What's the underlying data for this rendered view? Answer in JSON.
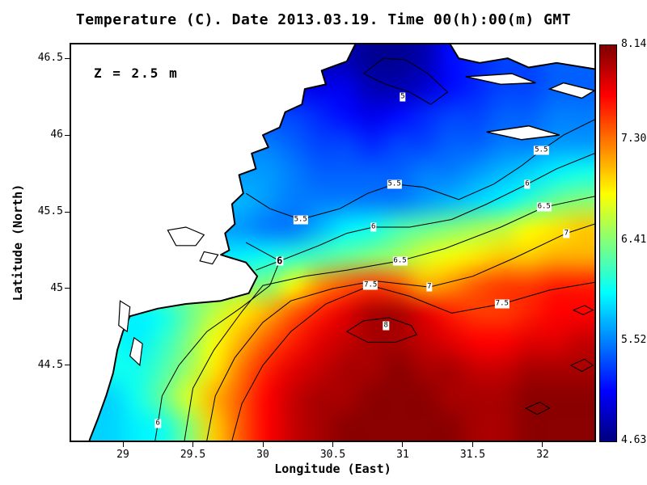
{
  "title": "Temperature (C). Date 2013.03.19. Time 00(h):00(m) GMT",
  "annotation": "Z = 2.5 m",
  "chart_data": {
    "type": "heatmap",
    "title": "Temperature (C). Date 2013.03.19. Time 00(h):00(m) GMT",
    "xlabel": "Longitude (East)",
    "ylabel": "Latitude (North)",
    "lon_range": [
      28.63,
      32.37
    ],
    "lat_range": [
      44.01,
      46.59
    ],
    "x_ticks": [
      {
        "value": 29,
        "label": "29"
      },
      {
        "value": 29.5,
        "label": "29.5"
      },
      {
        "value": 30,
        "label": "30"
      },
      {
        "value": 30.5,
        "label": "30.5"
      },
      {
        "value": 31,
        "label": "31"
      },
      {
        "value": 31.5,
        "label": "31.5"
      },
      {
        "value": 32,
        "label": "32"
      }
    ],
    "y_ticks": [
      {
        "value": 44.5,
        "label": "44.5"
      },
      {
        "value": 45,
        "label": "45"
      },
      {
        "value": 45.5,
        "label": "45.5"
      },
      {
        "value": 46,
        "label": "46"
      },
      {
        "value": 46.5,
        "label": "46.5"
      }
    ],
    "temp_min": 4.63,
    "temp_max": 8.14,
    "colormap": "jet",
    "colorbar_labels": [
      {
        "value": 8.14,
        "label": "8.14"
      },
      {
        "value": 7.3,
        "label": "7.30"
      },
      {
        "value": 6.41,
        "label": "6.41"
      },
      {
        "value": 5.52,
        "label": "5.52"
      },
      {
        "value": 4.63,
        "label": "4.63"
      }
    ],
    "grid": {
      "cols": 20,
      "rows": 14,
      "note": "temperature C on regular lon/lat grid, north row first, null = land",
      "values": [
        [
          null,
          null,
          null,
          null,
          null,
          null,
          null,
          null,
          null,
          null,
          4.8,
          4.7,
          4.7,
          4.8,
          5.1,
          5.2,
          5.3,
          5.3,
          5.4,
          5.4
        ],
        [
          null,
          null,
          null,
          null,
          null,
          null,
          null,
          null,
          null,
          null,
          5.0,
          4.8,
          4.8,
          4.9,
          5.1,
          5.2,
          5.3,
          5.3,
          5.4,
          5.4
        ],
        [
          null,
          null,
          null,
          null,
          null,
          null,
          null,
          null,
          5.3,
          5.2,
          5.1,
          5.0,
          5.1,
          5.2,
          5.3,
          5.3,
          5.4,
          5.4,
          5.5,
          5.5
        ],
        [
          null,
          null,
          null,
          null,
          null,
          null,
          null,
          5.5,
          5.4,
          5.3,
          5.3,
          5.2,
          5.3,
          5.3,
          5.4,
          5.4,
          5.5,
          5.5,
          5.6,
          5.6
        ],
        [
          null,
          null,
          null,
          null,
          null,
          null,
          null,
          5.6,
          5.5,
          5.4,
          5.4,
          5.4,
          5.4,
          5.5,
          5.5,
          5.6,
          5.7,
          5.8,
          5.9,
          6.0
        ],
        [
          null,
          null,
          null,
          null,
          null,
          null,
          5.7,
          5.6,
          5.5,
          5.5,
          5.5,
          5.5,
          5.5,
          5.6,
          5.7,
          5.8,
          5.9,
          6.1,
          6.3,
          6.4
        ],
        [
          null,
          null,
          null,
          null,
          null,
          null,
          5.6,
          5.5,
          5.5,
          5.7,
          5.9,
          6.0,
          6.2,
          6.3,
          6.4,
          6.5,
          6.6,
          6.8,
          6.9,
          7.0
        ],
        [
          null,
          null,
          null,
          null,
          null,
          null,
          5.9,
          6.0,
          6.1,
          6.2,
          6.3,
          6.4,
          6.5,
          6.7,
          6.8,
          6.9,
          7.0,
          7.0,
          7.1,
          7.1
        ],
        [
          null,
          null,
          null,
          null,
          null,
          null,
          null,
          6.4,
          6.8,
          7.2,
          7.4,
          7.5,
          7.4,
          7.1,
          7.2,
          7.4,
          7.5,
          7.5,
          7.6,
          7.6
        ],
        [
          null,
          null,
          5.9,
          6.0,
          6.3,
          6.6,
          6.9,
          7.1,
          7.4,
          7.6,
          7.8,
          8.0,
          8.0,
          7.8,
          7.6,
          7.5,
          7.5,
          7.6,
          7.7,
          7.7
        ],
        [
          null,
          6.0,
          5.9,
          6.1,
          6.4,
          6.8,
          7.1,
          7.4,
          7.6,
          7.8,
          7.9,
          8.0,
          8.0,
          7.9,
          7.8,
          7.7,
          7.7,
          7.8,
          7.8,
          7.9
        ],
        [
          null,
          6.0,
          6.0,
          6.2,
          6.5,
          6.9,
          7.3,
          7.6,
          7.8,
          7.9,
          8.0,
          8.0,
          8.1,
          8.0,
          8.0,
          7.9,
          7.9,
          8.0,
          8.0,
          8.0
        ],
        [
          null,
          5.8,
          6.0,
          6.3,
          6.7,
          7.1,
          7.4,
          7.7,
          7.9,
          8.0,
          8.0,
          8.1,
          8.1,
          8.1,
          8.0,
          8.0,
          8.0,
          8.1,
          8.1,
          8.1
        ],
        [
          null,
          5.8,
          5.9,
          6.0,
          6.4,
          7.0,
          7.4,
          7.7,
          7.9,
          8.0,
          8.1,
          8.1,
          8.1,
          8.1,
          8.1,
          8.0,
          8.0,
          8.1,
          8.1,
          8.1
        ]
      ]
    },
    "contours": [
      {
        "level": "5",
        "closed": true,
        "points": [
          [
            30.72,
            46.4
          ],
          [
            30.88,
            46.33
          ],
          [
            31.05,
            46.28
          ],
          [
            31.2,
            46.2
          ],
          [
            31.32,
            46.28
          ],
          [
            31.18,
            46.4
          ],
          [
            31.02,
            46.49
          ],
          [
            30.86,
            46.5
          ],
          [
            30.72,
            46.4
          ]
        ]
      },
      {
        "level": "5.5",
        "closed": false,
        "points": [
          [
            29.88,
            45.62
          ],
          [
            30.05,
            45.52
          ],
          [
            30.27,
            45.45
          ],
          [
            30.55,
            45.52
          ],
          [
            30.75,
            45.62
          ],
          [
            30.94,
            45.68
          ],
          [
            31.15,
            45.66
          ],
          [
            31.4,
            45.58
          ],
          [
            31.65,
            45.68
          ],
          [
            31.85,
            45.8
          ],
          [
            31.99,
            45.9
          ],
          [
            32.15,
            46.0
          ],
          [
            32.37,
            46.1
          ]
        ]
      },
      {
        "level": "6",
        "closed": false,
        "points": [
          [
            29.88,
            45.3
          ],
          [
            30.12,
            45.18
          ],
          [
            30.4,
            45.28
          ],
          [
            30.6,
            45.36
          ],
          [
            30.79,
            45.4
          ],
          [
            31.05,
            45.4
          ],
          [
            31.35,
            45.45
          ],
          [
            31.6,
            45.55
          ],
          [
            31.89,
            45.68
          ],
          [
            32.1,
            45.78
          ],
          [
            32.37,
            45.88
          ]
        ]
      },
      {
        "level": "6",
        "closed": false,
        "points": [
          [
            29.95,
            45.12
          ],
          [
            30.12,
            45.18
          ],
          [
            30.05,
            45.02
          ],
          [
            29.85,
            44.88
          ],
          [
            29.6,
            44.72
          ],
          [
            29.4,
            44.5
          ],
          [
            29.28,
            44.3
          ],
          [
            29.25,
            44.12
          ],
          [
            29.23,
            44.01
          ]
        ]
      },
      {
        "level": "6.5",
        "closed": false,
        "points": [
          [
            29.44,
            44.01
          ],
          [
            29.5,
            44.35
          ],
          [
            29.65,
            44.6
          ],
          [
            29.85,
            44.85
          ],
          [
            30.0,
            45.02
          ],
          [
            30.3,
            45.08
          ],
          [
            30.6,
            45.12
          ],
          [
            30.98,
            45.18
          ],
          [
            31.3,
            45.26
          ],
          [
            31.7,
            45.4
          ],
          [
            32.01,
            45.53
          ],
          [
            32.37,
            45.6
          ]
        ]
      },
      {
        "level": "7",
        "closed": false,
        "points": [
          [
            29.6,
            44.01
          ],
          [
            29.66,
            44.3
          ],
          [
            29.8,
            44.55
          ],
          [
            30.0,
            44.78
          ],
          [
            30.2,
            44.92
          ],
          [
            30.5,
            45.0
          ],
          [
            30.8,
            45.05
          ],
          [
            31.19,
            45.01
          ],
          [
            31.5,
            45.08
          ],
          [
            31.8,
            45.2
          ],
          [
            32.17,
            45.36
          ],
          [
            32.37,
            45.42
          ]
        ]
      },
      {
        "level": "7.5",
        "closed": false,
        "points": [
          [
            29.78,
            44.01
          ],
          [
            29.85,
            44.25
          ],
          [
            30.0,
            44.5
          ],
          [
            30.2,
            44.72
          ],
          [
            30.45,
            44.9
          ],
          [
            30.77,
            45.02
          ],
          [
            31.05,
            44.95
          ],
          [
            31.35,
            44.84
          ],
          [
            31.71,
            44.9
          ],
          [
            32.05,
            44.99
          ],
          [
            32.37,
            45.04
          ]
        ]
      },
      {
        "level": "8",
        "closed": true,
        "points": [
          [
            30.6,
            44.72
          ],
          [
            30.72,
            44.79
          ],
          [
            30.9,
            44.81
          ],
          [
            31.06,
            44.76
          ],
          [
            31.1,
            44.7
          ],
          [
            30.95,
            44.65
          ],
          [
            30.75,
            44.65
          ],
          [
            30.6,
            44.72
          ]
        ]
      },
      {
        "level": "8",
        "closed": true,
        "points": [
          [
            31.88,
            44.22
          ],
          [
            31.98,
            44.26
          ],
          [
            32.05,
            44.22
          ],
          [
            31.96,
            44.18
          ],
          [
            31.88,
            44.22
          ]
        ]
      },
      {
        "level": "8",
        "closed": true,
        "points": [
          [
            32.2,
            44.5
          ],
          [
            32.3,
            44.54
          ],
          [
            32.36,
            44.5
          ],
          [
            32.28,
            44.46
          ],
          [
            32.2,
            44.5
          ]
        ]
      },
      {
        "level": "7.5",
        "closed": true,
        "points": [
          [
            32.22,
            44.86
          ],
          [
            32.3,
            44.89
          ],
          [
            32.36,
            44.86
          ],
          [
            32.29,
            44.83
          ],
          [
            32.22,
            44.86
          ]
        ]
      }
    ],
    "contour_labels": [
      {
        "text": "5",
        "lon": 31.0,
        "lat": 46.25
      },
      {
        "text": "5.5",
        "lon": 30.27,
        "lat": 45.45
      },
      {
        "text": "5.5",
        "lon": 30.94,
        "lat": 45.68
      },
      {
        "text": "5.5",
        "lon": 31.99,
        "lat": 45.9
      },
      {
        "text": "6",
        "lon": 30.79,
        "lat": 45.4
      },
      {
        "text": "6",
        "lon": 31.89,
        "lat": 45.68
      },
      {
        "text": "6",
        "lon": 30.12,
        "lat": 45.18,
        "big": true
      },
      {
        "text": "6",
        "lon": 29.25,
        "lat": 44.12
      },
      {
        "text": "6.5",
        "lon": 30.98,
        "lat": 45.18
      },
      {
        "text": "6.5",
        "lon": 32.01,
        "lat": 45.53
      },
      {
        "text": "7",
        "lon": 31.19,
        "lat": 45.01
      },
      {
        "text": "7",
        "lon": 32.17,
        "lat": 45.36
      },
      {
        "text": "7.5",
        "lon": 30.77,
        "lat": 45.02
      },
      {
        "text": "7.5",
        "lon": 31.71,
        "lat": 44.9
      },
      {
        "text": "8",
        "lon": 30.88,
        "lat": 44.76
      }
    ],
    "land": {
      "west_coast": [
        [
          30.66,
          46.59
        ],
        [
          30.6,
          46.48
        ],
        [
          30.42,
          46.42
        ],
        [
          30.45,
          46.33
        ],
        [
          30.3,
          46.3
        ],
        [
          30.28,
          46.2
        ],
        [
          30.16,
          46.15
        ],
        [
          30.12,
          46.05
        ],
        [
          30.0,
          46.0
        ],
        [
          30.04,
          45.92
        ],
        [
          29.92,
          45.88
        ],
        [
          29.95,
          45.78
        ],
        [
          29.83,
          45.74
        ],
        [
          29.86,
          45.62
        ],
        [
          29.78,
          45.55
        ],
        [
          29.8,
          45.42
        ],
        [
          29.73,
          45.36
        ],
        [
          29.76,
          45.25
        ],
        [
          29.7,
          45.22
        ],
        [
          29.88,
          45.17
        ],
        [
          29.96,
          45.08
        ],
        [
          29.9,
          44.97
        ],
        [
          29.7,
          44.92
        ],
        [
          29.45,
          44.9
        ],
        [
          29.25,
          44.87
        ],
        [
          29.05,
          44.82
        ],
        [
          29.0,
          44.72
        ],
        [
          28.96,
          44.6
        ],
        [
          28.93,
          44.45
        ],
        [
          28.88,
          44.3
        ],
        [
          28.82,
          44.15
        ],
        [
          28.76,
          44.01
        ]
      ],
      "northeast_coast": [
        [
          31.34,
          46.59
        ],
        [
          31.4,
          46.5
        ],
        [
          31.55,
          46.47
        ],
        [
          31.75,
          46.5
        ],
        [
          31.9,
          46.44
        ],
        [
          32.1,
          46.47
        ],
        [
          32.37,
          46.43
        ]
      ],
      "islands": [
        [
          [
            31.45,
            46.38
          ],
          [
            31.7,
            46.33
          ],
          [
            31.95,
            46.34
          ],
          [
            31.78,
            46.4
          ],
          [
            31.45,
            46.38
          ]
        ],
        [
          [
            32.05,
            46.3
          ],
          [
            32.28,
            46.24
          ],
          [
            32.37,
            46.29
          ],
          [
            32.15,
            46.34
          ],
          [
            32.05,
            46.3
          ]
        ],
        [
          [
            31.6,
            46.02
          ],
          [
            31.85,
            45.97
          ],
          [
            32.12,
            46.0
          ],
          [
            31.9,
            46.06
          ],
          [
            31.6,
            46.02
          ]
        ]
      ],
      "lakes": [
        [
          [
            29.32,
            45.38
          ],
          [
            29.45,
            45.4
          ],
          [
            29.58,
            45.35
          ],
          [
            29.52,
            45.28
          ],
          [
            29.38,
            45.28
          ],
          [
            29.32,
            45.38
          ]
        ],
        [
          [
            29.58,
            45.24
          ],
          [
            29.68,
            45.22
          ],
          [
            29.64,
            45.16
          ],
          [
            29.55,
            45.18
          ],
          [
            29.58,
            45.24
          ]
        ],
        [
          [
            28.98,
            44.92
          ],
          [
            29.05,
            44.88
          ],
          [
            29.03,
            44.72
          ],
          [
            28.97,
            44.76
          ],
          [
            28.98,
            44.92
          ]
        ],
        [
          [
            29.08,
            44.68
          ],
          [
            29.14,
            44.64
          ],
          [
            29.12,
            44.5
          ],
          [
            29.05,
            44.56
          ],
          [
            29.08,
            44.68
          ]
        ]
      ]
    }
  }
}
